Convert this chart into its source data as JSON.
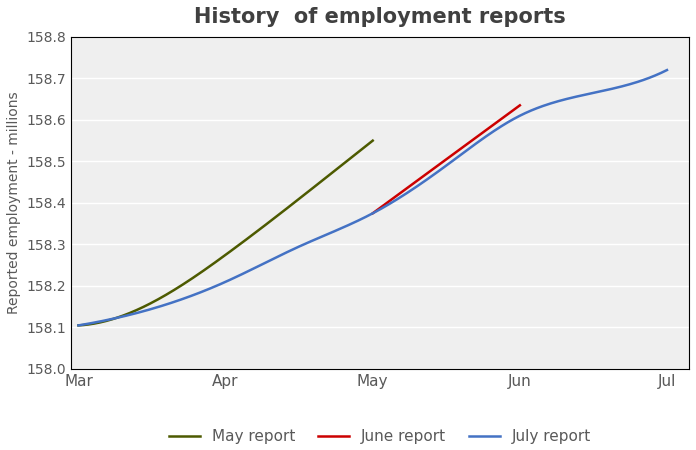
{
  "title": "History  of employment reports",
  "ylabel": "Reported employment - millions",
  "xlabel": "",
  "ylim": [
    158.0,
    158.8
  ],
  "fig_bg_color": "#ffffff",
  "plot_bg_color": "#efefef",
  "title_color": "#404040",
  "title_fontsize": 15,
  "series": [
    {
      "label": "May report",
      "color": "#4d5a00",
      "linewidth": 1.8,
      "x": [
        0,
        0.5,
        1.0,
        1.5,
        2.0
      ],
      "y": [
        158.105,
        158.16,
        158.275,
        158.41,
        158.55
      ]
    },
    {
      "label": "June report",
      "color": "#cc0000",
      "linewidth": 1.8,
      "x": [
        2.0,
        2.5,
        3.0
      ],
      "y": [
        158.375,
        158.505,
        158.635
      ]
    },
    {
      "label": "July report",
      "color": "#4472c4",
      "linewidth": 1.8,
      "x": [
        0,
        0.5,
        1.0,
        1.5,
        2.0,
        2.5,
        3.0,
        3.5,
        4.0
      ],
      "y": [
        158.105,
        158.145,
        158.21,
        158.295,
        158.375,
        158.49,
        158.61,
        158.665,
        158.72
      ]
    }
  ],
  "xtick_positions": [
    0,
    1,
    2,
    3,
    4
  ],
  "xtick_labels": [
    "Mar",
    "Apr",
    "May",
    "Jun",
    "Jul"
  ],
  "ytick_step": 0.1,
  "grid_color": "#ffffff",
  "legend_ncol": 3,
  "legend_fontsize": 11,
  "axis_label_color": "#5b9bd5",
  "tick_label_color": "#595959"
}
